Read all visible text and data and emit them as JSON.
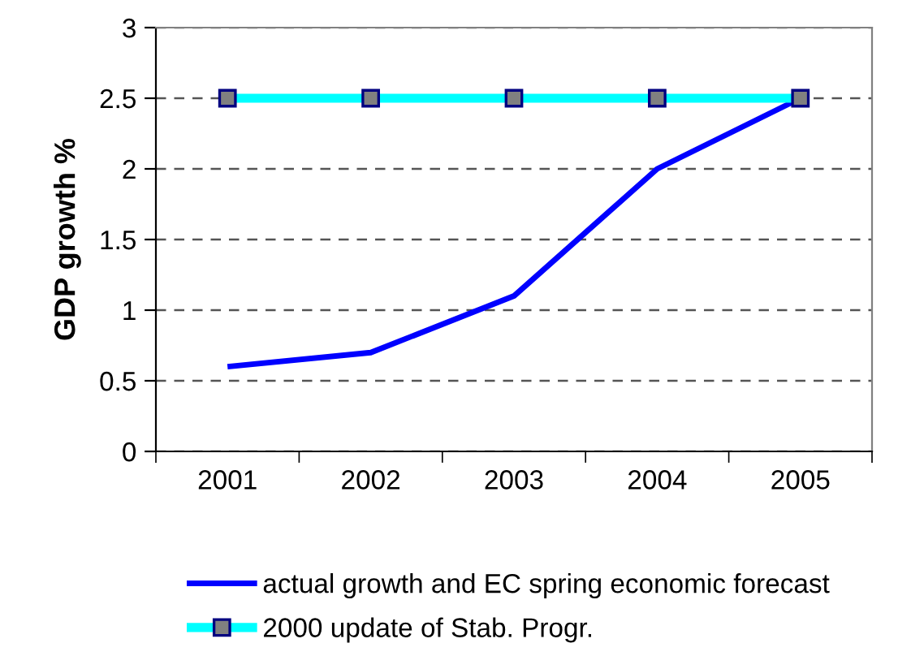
{
  "chart_data": {
    "type": "line",
    "ylabel": "GDP growth %",
    "categories": [
      "2001",
      "2002",
      "2003",
      "2004",
      "2005"
    ],
    "series": [
      {
        "name": "actual growth and EC spring economic forecast",
        "color": "#0000ff",
        "values": [
          0.6,
          0.7,
          1.1,
          2.0,
          2.5
        ],
        "marker": "none"
      },
      {
        "name": "2000 update of Stab. Progr.",
        "color": "#00ffff",
        "values": [
          2.5,
          2.5,
          2.5,
          2.5,
          2.5
        ],
        "marker": "square"
      }
    ],
    "ylim": [
      0,
      3
    ],
    "yticks": [
      0,
      0.5,
      1,
      1.5,
      2,
      2.5,
      3
    ],
    "grid": "y",
    "legend": "bottom"
  }
}
